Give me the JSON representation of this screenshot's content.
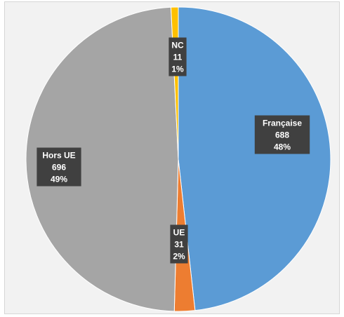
{
  "chart_data": {
    "type": "pie",
    "title": "",
    "slices": [
      {
        "label": "Française",
        "value": 688,
        "percent": "48%",
        "color": "#5b9bd5"
      },
      {
        "label": "UE",
        "value": 31,
        "percent": "2%",
        "color": "#ed7d31"
      },
      {
        "label": "Hors UE",
        "value": 696,
        "percent": "49%",
        "color": "#a5a5a5"
      },
      {
        "label": "NC",
        "value": 11,
        "percent": "1%",
        "color": "#ffc000"
      }
    ],
    "start_angle_deg": 0,
    "direction": "clockwise",
    "data_labels": [
      "category",
      "value",
      "percent"
    ],
    "label_box_color": "#404040"
  }
}
